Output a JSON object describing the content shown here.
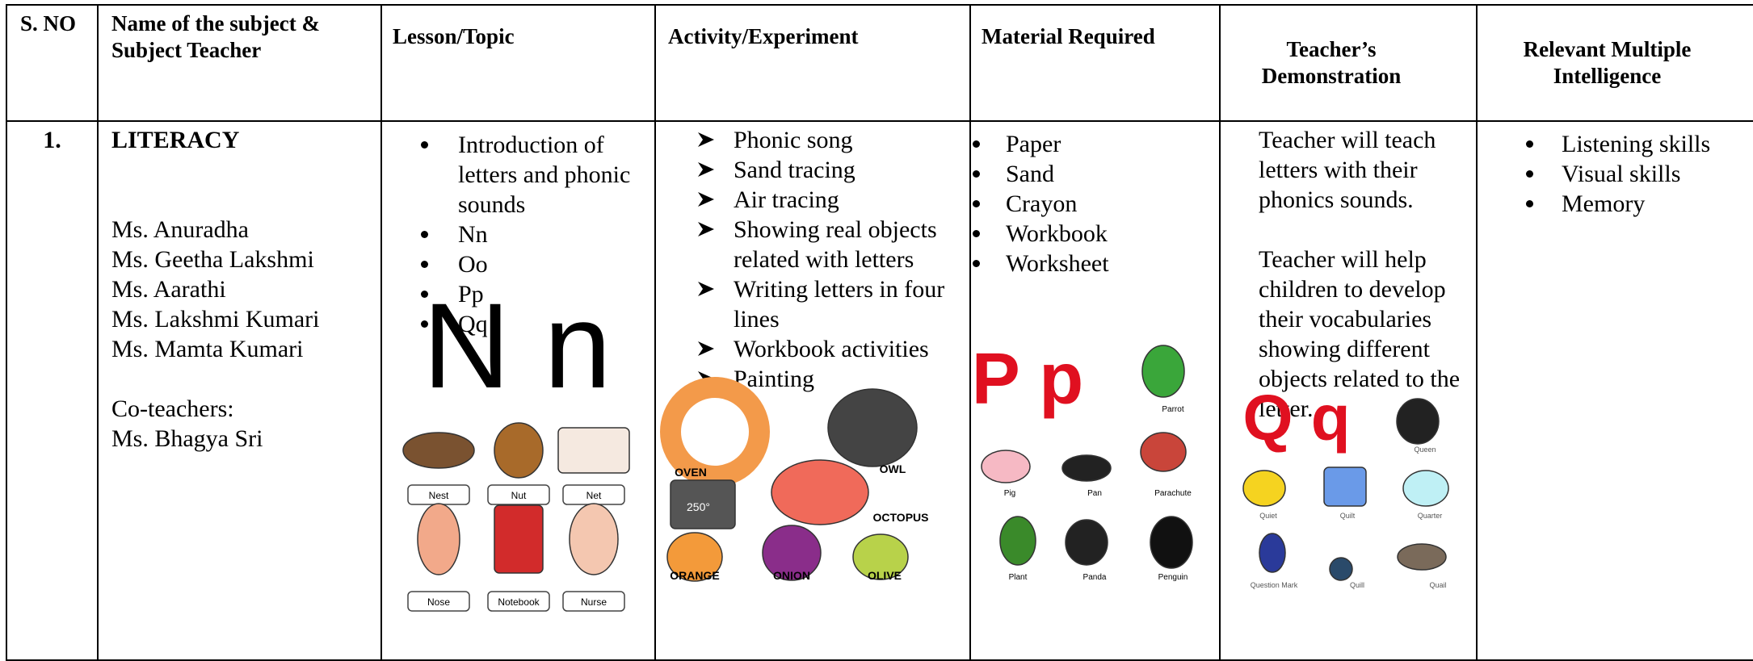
{
  "table": {
    "header": [
      "S. NO",
      "Name of the subject & Subject Teacher",
      "Lesson/Topic",
      "Activity/Experiment",
      "Material Required",
      "Teacher’s Demonstration",
      "Relevant Multiple Intelligence"
    ],
    "rows": [
      {
        "sno": "1.",
        "subject": "LITERACY",
        "teachers": [
          "Ms. Anuradha",
          "Ms. Geetha Lakshmi",
          "Ms. Aarathi",
          "Ms. Lakshmi Kumari",
          "Ms. Mamta Kumari"
        ],
        "co_teachers_label": "Co-teachers:",
        "co_teachers": [
          "Ms. Bhagya Sri"
        ],
        "topics": [
          "Introduction of letters and phonic sounds",
          "Nn",
          "Oo",
          "Pp",
          "Qq"
        ],
        "activities": [
          "Phonic song",
          "Sand tracing",
          "Air tracing",
          "Showing real objects related with letters",
          "Writing letters in four lines",
          "Workbook activities",
          "Painting"
        ],
        "materials": [
          "Paper",
          "Sand",
          "Crayon",
          "Workbook",
          "Worksheet"
        ],
        "demonstration": [
          "Teacher will teach letters with their phonics sounds.",
          "Teacher will help children to develop their vocabularies showing different objects related to the letter."
        ],
        "intelligences": [
          "Listening skills",
          "Visual skills",
          "Memory"
        ]
      }
    ]
  },
  "pictures": {
    "n": {
      "letters": "N n",
      "labels": [
        "Nest",
        "Nut",
        "Net",
        "Nose",
        "Notebook",
        "Nurse"
      ]
    },
    "o": {
      "labels": [
        "OVEN",
        "OWL",
        "OCTOPUS",
        "ORANGE",
        "ONION",
        "OLIVE"
      ],
      "oven_temp": "250°"
    },
    "p": {
      "letters": "P p",
      "labels": [
        "Parrot",
        "Pig",
        "Pan",
        "Parachute",
        "Plant",
        "Panda",
        "Penguin"
      ]
    },
    "q": {
      "letters": "Q q",
      "labels": [
        "Queen",
        "Quiet",
        "Quilt",
        "Quarter",
        "Question Mark",
        "Quill",
        "Quail"
      ]
    }
  }
}
